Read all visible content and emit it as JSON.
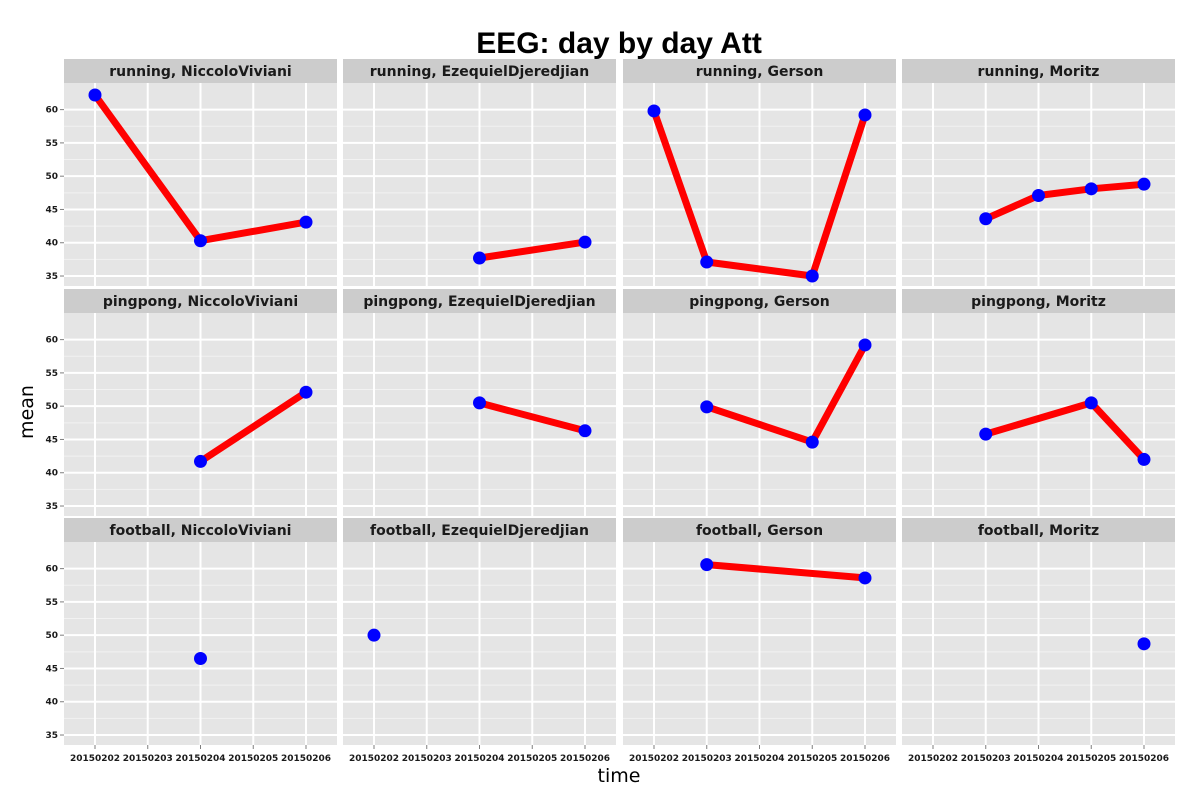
{
  "chart_data": {
    "type": "line",
    "title": "EEG: day by day Att",
    "xlabel": "time",
    "ylabel": "mean",
    "x_categories": [
      "20150202",
      "20150203",
      "20150204",
      "20150205",
      "20150206"
    ],
    "y_ticks": [
      35,
      40,
      45,
      50,
      55,
      60
    ],
    "ylim": [
      33.5,
      64
    ],
    "grid": true,
    "line_color": "#ff0000",
    "point_color": "#0000ff",
    "panel_background": "#e5e5e5",
    "strip_background": "#cccccc",
    "panels": [
      {
        "label": "running, NiccoloViviani",
        "points": [
          {
            "x": "20150202",
            "y": 62.2
          },
          {
            "x": "20150204",
            "y": 40.3
          },
          {
            "x": "20150206",
            "y": 43.1
          }
        ]
      },
      {
        "label": "running, EzequielDjeredjian",
        "points": [
          {
            "x": "20150204",
            "y": 37.7
          },
          {
            "x": "20150206",
            "y": 40.1
          }
        ]
      },
      {
        "label": "running, Gerson",
        "points": [
          {
            "x": "20150202",
            "y": 59.8
          },
          {
            "x": "20150203",
            "y": 37.1
          },
          {
            "x": "20150205",
            "y": 35.0
          },
          {
            "x": "20150206",
            "y": 59.2
          }
        ]
      },
      {
        "label": "running, Moritz",
        "points": [
          {
            "x": "20150203",
            "y": 43.6
          },
          {
            "x": "20150204",
            "y": 47.1
          },
          {
            "x": "20150205",
            "y": 48.1
          },
          {
            "x": "20150206",
            "y": 48.8
          }
        ]
      },
      {
        "label": "pingpong, NiccoloViviani",
        "points": [
          {
            "x": "20150204",
            "y": 41.7
          },
          {
            "x": "20150206",
            "y": 52.1
          }
        ]
      },
      {
        "label": "pingpong, EzequielDjeredjian",
        "points": [
          {
            "x": "20150204",
            "y": 50.5
          },
          {
            "x": "20150206",
            "y": 46.3
          }
        ]
      },
      {
        "label": "pingpong, Gerson",
        "points": [
          {
            "x": "20150203",
            "y": 49.9
          },
          {
            "x": "20150205",
            "y": 44.6
          },
          {
            "x": "20150206",
            "y": 59.2
          }
        ]
      },
      {
        "label": "pingpong, Moritz",
        "points": [
          {
            "x": "20150203",
            "y": 45.8
          },
          {
            "x": "20150205",
            "y": 50.5
          },
          {
            "x": "20150206",
            "y": 42.0
          }
        ]
      },
      {
        "label": "football, NiccoloViviani",
        "points": [
          {
            "x": "20150204",
            "y": 46.5
          }
        ]
      },
      {
        "label": "football, EzequielDjeredjian",
        "points": [
          {
            "x": "20150202",
            "y": 50.0
          }
        ]
      },
      {
        "label": "football, Gerson",
        "points": [
          {
            "x": "20150203",
            "y": 60.6
          },
          {
            "x": "20150206",
            "y": 58.6
          }
        ]
      },
      {
        "label": "football, Moritz",
        "points": [
          {
            "x": "20150206",
            "y": 48.7
          }
        ]
      }
    ]
  }
}
